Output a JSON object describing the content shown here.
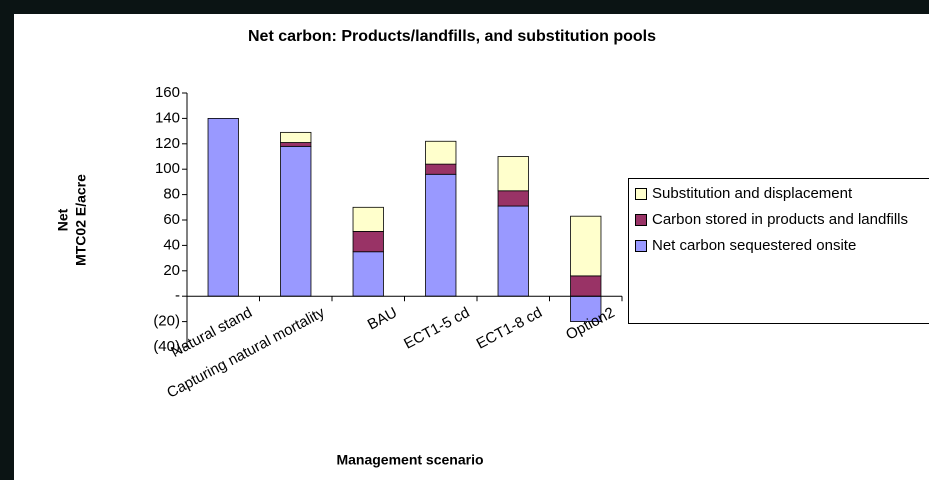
{
  "chart_data": {
    "type": "stacked_bar",
    "title": "Net carbon: Products/landfills, and substitution pools",
    "ylabel_lines": [
      "Net",
      "MTC02 E/acre"
    ],
    "xlabel": "Management scenario",
    "categories": [
      "Natural stand",
      "Capturing natural mortality",
      "BAU",
      "ECT1-5 cd",
      "ECT1-8 cd",
      "Option2"
    ],
    "series": [
      {
        "name": "Net carbon sequestered onsite",
        "color": "#9999ff",
        "values": [
          140,
          118,
          35,
          96,
          71,
          -20
        ]
      },
      {
        "name": "Carbon stored in products and landfills",
        "color": "#993366",
        "values": [
          0,
          3,
          16,
          8,
          12,
          16
        ]
      },
      {
        "name": "Substitution and displacement",
        "color": "#ffffcc",
        "values": [
          0,
          8,
          19,
          18,
          27,
          47
        ]
      }
    ],
    "ylim": [
      -40,
      160
    ],
    "yticks": [
      {
        "value": -40,
        "label": "(40)"
      },
      {
        "value": -20,
        "label": "(20)"
      },
      {
        "value": 0,
        "label": "-"
      },
      20,
      40,
      60,
      80,
      100,
      120,
      140,
      160
    ],
    "grid": false,
    "legend": "right"
  }
}
